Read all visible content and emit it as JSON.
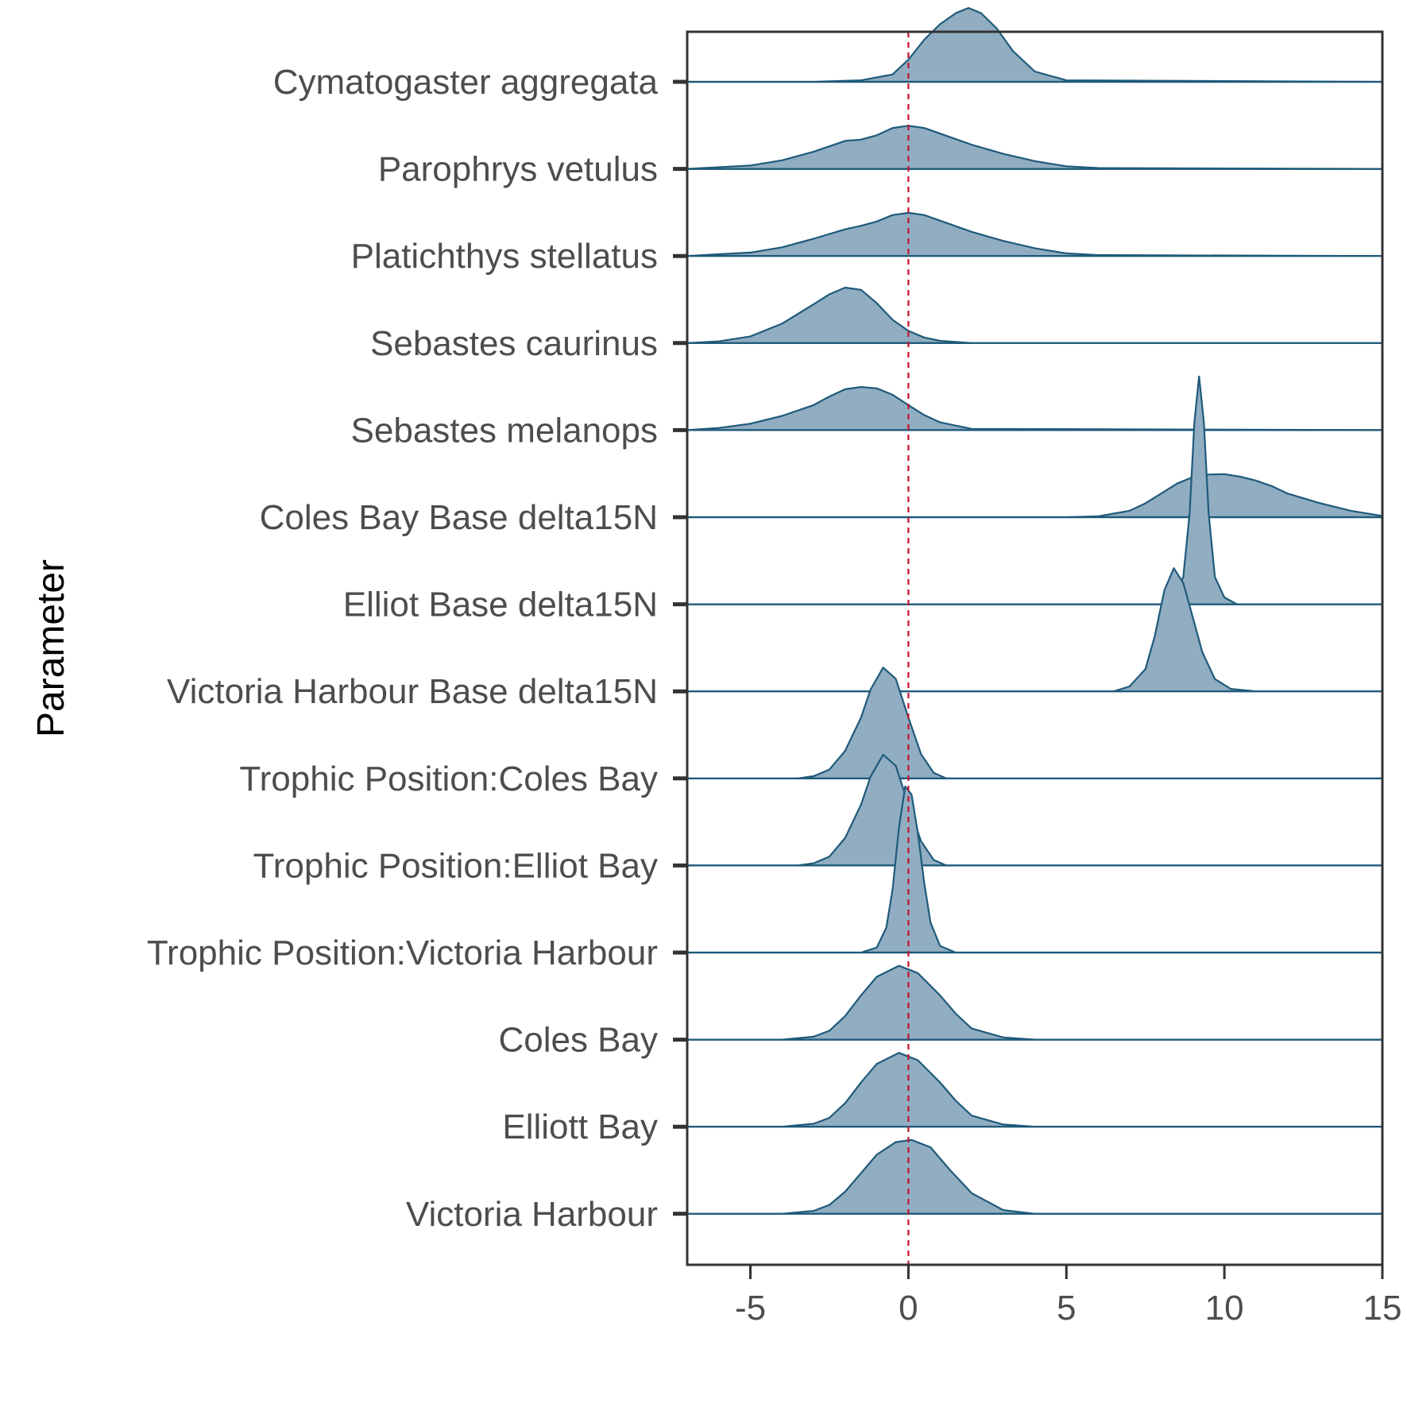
{
  "chart_data": {
    "type": "ridgeline",
    "title": "",
    "xlabel": "",
    "ylabel": "Parameter",
    "xlim": [
      -7,
      15
    ],
    "x_ticks": [
      -5,
      0,
      5,
      10,
      15
    ],
    "grid": false,
    "reference_line": {
      "x": 0,
      "style": "dashed",
      "color": "#c8102e"
    },
    "colors": {
      "fill": "#91adc2",
      "line": "#1f5a7a",
      "axis": "#333333"
    },
    "series": [
      {
        "name": "Cymatogaster aggregata",
        "peak_x": 1.9,
        "rel_height": 0.6,
        "x": [
          -7,
          -3,
          -1.5,
          -0.5,
          0,
          0.5,
          1,
          1.5,
          1.9,
          2.3,
          2.8,
          3.3,
          4,
          5,
          15
        ],
        "y": [
          0,
          0,
          0.02,
          0.1,
          0.3,
          0.57,
          0.78,
          0.93,
          1.0,
          0.93,
          0.72,
          0.42,
          0.14,
          0.02,
          0
        ]
      },
      {
        "name": "Parophrys vetulus",
        "peak_x": 0,
        "rel_height": 0.35,
        "x": [
          -7,
          -5,
          -4,
          -3,
          -2,
          -1.5,
          -1,
          -0.5,
          0,
          0.5,
          1,
          2,
          3,
          4,
          5,
          6,
          15
        ],
        "y": [
          0,
          0.08,
          0.2,
          0.4,
          0.65,
          0.68,
          0.78,
          0.95,
          1.0,
          0.95,
          0.82,
          0.56,
          0.35,
          0.18,
          0.06,
          0.02,
          0
        ]
      },
      {
        "name": "Platichthys stellatus",
        "peak_x": 0,
        "rel_height": 0.35,
        "x": [
          -7,
          -5,
          -4,
          -3,
          -2,
          -1.5,
          -1,
          -0.5,
          0,
          0.5,
          1,
          2,
          3,
          4,
          5,
          6,
          15
        ],
        "y": [
          0,
          0.08,
          0.2,
          0.4,
          0.62,
          0.7,
          0.8,
          0.95,
          1.0,
          0.95,
          0.82,
          0.56,
          0.35,
          0.18,
          0.06,
          0.02,
          0
        ]
      },
      {
        "name": "Sebastes caurinus",
        "peak_x": -2,
        "rel_height": 0.45,
        "x": [
          -7,
          -6,
          -5,
          -4,
          -3,
          -2.5,
          -2,
          -1.5,
          -1,
          -0.5,
          0,
          0.5,
          1,
          2,
          15
        ],
        "y": [
          0,
          0.03,
          0.12,
          0.35,
          0.7,
          0.88,
          1.0,
          0.96,
          0.72,
          0.42,
          0.22,
          0.1,
          0.04,
          0,
          0
        ]
      },
      {
        "name": "Sebastes melanops",
        "peak_x": -1.5,
        "rel_height": 0.35,
        "x": [
          -7,
          -6,
          -5,
          -4,
          -3,
          -2.5,
          -2,
          -1.5,
          -1,
          -0.5,
          0,
          0.5,
          1,
          2,
          15
        ],
        "y": [
          0,
          0.05,
          0.15,
          0.33,
          0.58,
          0.78,
          0.95,
          1.0,
          0.97,
          0.82,
          0.58,
          0.35,
          0.18,
          0.03,
          0
        ]
      },
      {
        "name": "Coles Bay Base delta15N",
        "peak_x": 9.8,
        "rel_height": 0.35,
        "x": [
          -7,
          5,
          6,
          7,
          7.5,
          8,
          8.5,
          9,
          9.5,
          10,
          10.5,
          11,
          11.5,
          12,
          13,
          14,
          15
        ],
        "y": [
          0,
          0,
          0.02,
          0.15,
          0.32,
          0.55,
          0.78,
          0.93,
          0.99,
          1.0,
          0.94,
          0.85,
          0.72,
          0.55,
          0.33,
          0.15,
          0.03
        ]
      },
      {
        "name": "Elliot Base delta15N",
        "peak_x": 9.2,
        "rel_height": 1.85,
        "x": [
          -7,
          8.0,
          8.4,
          8.7,
          8.9,
          9.05,
          9.2,
          9.35,
          9.5,
          9.7,
          10.0,
          10.4,
          15
        ],
        "y": [
          0,
          0,
          0.03,
          0.12,
          0.4,
          0.8,
          1.0,
          0.8,
          0.4,
          0.12,
          0.03,
          0,
          0
        ]
      },
      {
        "name": "Victoria Harbour Base delta15N",
        "peak_x": 8.4,
        "rel_height": 1.0,
        "x": [
          -7,
          6.5,
          7.0,
          7.5,
          7.8,
          8.1,
          8.4,
          8.7,
          9.0,
          9.3,
          9.7,
          10.2,
          11,
          15
        ],
        "y": [
          0,
          0,
          0.04,
          0.18,
          0.45,
          0.82,
          1.0,
          0.88,
          0.6,
          0.32,
          0.1,
          0.02,
          0,
          0
        ]
      },
      {
        "name": "Trophic Position:Coles Bay",
        "peak_x": -0.8,
        "rel_height": 0.9,
        "x": [
          -7,
          -3.5,
          -3,
          -2.5,
          -2,
          -1.5,
          -1.2,
          -0.8,
          -0.4,
          0,
          0.4,
          0.8,
          1.2,
          15
        ],
        "y": [
          0,
          0,
          0.02,
          0.08,
          0.25,
          0.55,
          0.8,
          1.0,
          0.9,
          0.55,
          0.22,
          0.05,
          0,
          0
        ]
      },
      {
        "name": "Trophic Position:Elliot Bay",
        "peak_x": -0.8,
        "rel_height": 0.9,
        "x": [
          -7,
          -3.5,
          -3,
          -2.5,
          -2,
          -1.5,
          -1.2,
          -0.8,
          -0.4,
          0,
          0.4,
          0.8,
          1.2,
          15
        ],
        "y": [
          0,
          0,
          0.02,
          0.08,
          0.25,
          0.55,
          0.8,
          1.0,
          0.9,
          0.55,
          0.22,
          0.05,
          0,
          0
        ]
      },
      {
        "name": "Trophic Position:Victoria Harbour",
        "peak_x": -0.1,
        "rel_height": 1.35,
        "x": [
          -7,
          -1.5,
          -1.0,
          -0.7,
          -0.5,
          -0.3,
          -0.1,
          0.1,
          0.3,
          0.5,
          0.7,
          1.0,
          1.5,
          15
        ],
        "y": [
          0,
          0,
          0.03,
          0.15,
          0.38,
          0.75,
          1.0,
          0.95,
          0.72,
          0.42,
          0.18,
          0.04,
          0,
          0
        ]
      },
      {
        "name": "Coles Bay",
        "peak_x": -0.3,
        "rel_height": 0.6,
        "x": [
          -7,
          -4,
          -3,
          -2.5,
          -2,
          -1.5,
          -1,
          -0.3,
          0.3,
          1,
          1.5,
          2,
          3,
          4,
          15
        ],
        "y": [
          0,
          0,
          0.04,
          0.12,
          0.32,
          0.6,
          0.85,
          1.0,
          0.9,
          0.6,
          0.35,
          0.15,
          0.03,
          0,
          0
        ]
      },
      {
        "name": "Elliott Bay",
        "peak_x": -0.3,
        "rel_height": 0.6,
        "x": [
          -7,
          -4,
          -3,
          -2.5,
          -2,
          -1.5,
          -1,
          -0.3,
          0.3,
          1,
          1.5,
          2,
          3,
          4,
          15
        ],
        "y": [
          0,
          0,
          0.04,
          0.12,
          0.32,
          0.6,
          0.85,
          1.0,
          0.9,
          0.6,
          0.35,
          0.15,
          0.03,
          0,
          0
        ]
      },
      {
        "name": "Victoria Harbour",
        "peak_x": 0.1,
        "rel_height": 0.6,
        "x": [
          -7,
          -4,
          -3,
          -2.5,
          -2,
          -1.5,
          -1,
          -0.4,
          0.1,
          0.7,
          1.3,
          2,
          3,
          4,
          15
        ],
        "y": [
          0,
          0,
          0.04,
          0.12,
          0.3,
          0.55,
          0.8,
          0.97,
          1.0,
          0.9,
          0.6,
          0.28,
          0.05,
          0,
          0
        ]
      }
    ]
  }
}
